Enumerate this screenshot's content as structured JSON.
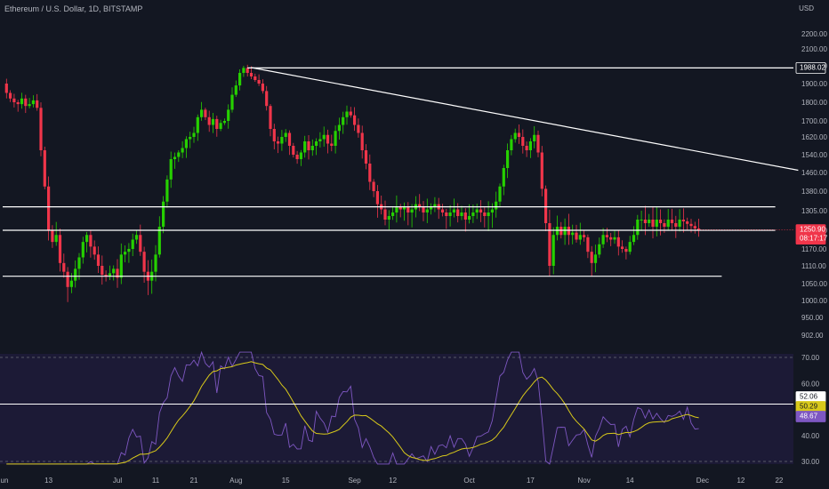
{
  "header": {
    "symbol_title": "Ethereum / U.S. Dollar, 1D, BITSTAMP",
    "currency": "USD"
  },
  "colors": {
    "background": "#131722",
    "up": "#26d000",
    "down": "#f0354a",
    "rsi_line": "#7e57c2",
    "rsi_ma": "#d8c91a",
    "level_line": "#ffffff",
    "price_badge": "#f0354a",
    "rsi_pane": "#1e1b3a"
  },
  "chart_data": [
    {
      "type": "candlestick",
      "title": "Ethereum / U.S. Dollar, 1D, BITSTAMP",
      "ylabel": "USD",
      "y_ticks": [
        902.0,
        950.0,
        1000.0,
        1050.0,
        1110.0,
        1170.0,
        1250.0,
        1305.0,
        1380.0,
        1460.0,
        1540.0,
        1620.0,
        1700.0,
        1800.0,
        1900.0,
        2000.0,
        2100.0,
        2200.0
      ],
      "y_tick_labels": [
        "902.00",
        "950.00",
        "1000.00",
        "1050.00",
        "1110.00",
        "1170.00",
        "1250.00",
        "1305.00",
        "1380.00",
        "1460.00",
        "1540.00",
        "1620.00",
        "1700.00",
        "1800.00",
        "1900.00",
        "2000.00",
        "2100.00",
        "2200.00"
      ],
      "x_tick_labels": [
        "Jun",
        "13",
        "Jul",
        "11",
        "21",
        "Aug",
        "15",
        "Sep",
        "12",
        "Oct",
        "17",
        "Nov",
        "14",
        "Dec",
        "12",
        "22"
      ],
      "x_tick_indices": [
        0,
        12,
        30,
        40,
        50,
        61,
        74,
        92,
        102,
        122,
        138,
        152,
        164,
        183,
        193,
        203
      ],
      "close_path": [
        1900,
        1850,
        1820,
        1800,
        1790,
        1820,
        1780,
        1790,
        1810,
        1770,
        1560,
        1400,
        1250,
        1200,
        1230,
        1120,
        1090,
        1040,
        1060,
        1100,
        1140,
        1200,
        1230,
        1180,
        1150,
        1110,
        1080,
        1075,
        1085,
        1100,
        1070,
        1150,
        1160,
        1170,
        1210,
        1230,
        1160,
        1090,
        1060,
        1090,
        1150,
        1260,
        1340,
        1430,
        1520,
        1530,
        1550,
        1570,
        1610,
        1620,
        1640,
        1720,
        1760,
        1720,
        1680,
        1710,
        1660,
        1690,
        1700,
        1760,
        1840,
        1890,
        1960,
        1988,
        1960,
        1940,
        1920,
        1900,
        1860,
        1780,
        1660,
        1600,
        1590,
        1620,
        1640,
        1580,
        1540,
        1520,
        1550,
        1600,
        1560,
        1580,
        1600,
        1610,
        1630,
        1590,
        1580,
        1650,
        1680,
        1720,
        1750,
        1730,
        1680,
        1640,
        1560,
        1500,
        1420,
        1380,
        1330,
        1310,
        1280,
        1290,
        1300,
        1320,
        1310,
        1320,
        1300,
        1310,
        1330,
        1320,
        1300,
        1310,
        1320,
        1330,
        1310,
        1300,
        1290,
        1300,
        1310,
        1290,
        1300,
        1280,
        1290,
        1300,
        1310,
        1300,
        1290,
        1300,
        1310,
        1340,
        1400,
        1480,
        1560,
        1610,
        1640,
        1620,
        1580,
        1560,
        1600,
        1630,
        1550,
        1390,
        1270,
        1110,
        1230,
        1260,
        1230,
        1260,
        1230,
        1240,
        1210,
        1230,
        1220,
        1160,
        1120,
        1150,
        1190,
        1230,
        1220,
        1210,
        1220,
        1180,
        1170,
        1160,
        1200,
        1230,
        1280,
        1280,
        1270,
        1280,
        1260,
        1280,
        1270,
        1260,
        1280,
        1270,
        1260,
        1280,
        1275,
        1268,
        1262,
        1255,
        1250.9
      ],
      "lines": [
        {
          "name": "resistance-1988",
          "y": 1988.02,
          "from_index": 64,
          "to_index": 212
        },
        {
          "name": "range-top",
          "y": 1320,
          "from_index": 0,
          "to_index": 202
        },
        {
          "name": "range-mid",
          "y": 1250,
          "from_index": 0,
          "to_index": 202
        },
        {
          "name": "range-bottom",
          "y": 1075,
          "from_index": 0,
          "to_index": 188
        },
        {
          "name": "trendline",
          "y_start": 1990,
          "y_end": 1470,
          "from_index": 65,
          "to_index": 208
        }
      ],
      "price_badge": {
        "value": "1250.90",
        "time": "08:17:17"
      },
      "level_badge": {
        "value": "1988.02"
      }
    },
    {
      "type": "line",
      "series": [
        {
          "name": "",
          "role": "rsi"
        },
        {
          "name": "",
          "role": "rsi-ma"
        }
      ],
      "y_ticks": [
        30,
        40,
        50,
        60,
        70
      ],
      "y_tick_labels": [
        "30.00",
        "40.00",
        "50.00",
        "60.00",
        "70.00"
      ],
      "ylim": [
        30,
        70
      ],
      "upper_band": 70,
      "lower_band": 30,
      "reference_line": 52.06,
      "badges": [
        {
          "value": "52.06",
          "style": "white"
        },
        {
          "value": "50.29",
          "style": "yellow"
        },
        {
          "value": "48.67",
          "style": "purple"
        }
      ]
    }
  ]
}
